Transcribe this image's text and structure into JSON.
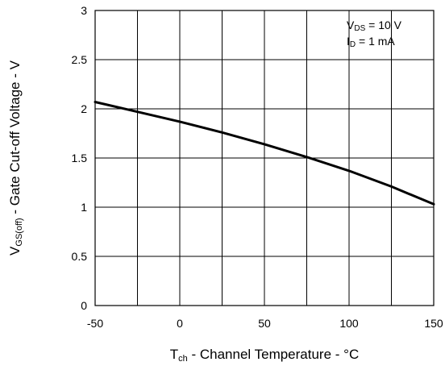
{
  "chart_data": {
    "type": "line",
    "xlim": [
      -50,
      150
    ],
    "ylim": [
      0,
      3
    ],
    "x_ticks": [
      "-50",
      "0",
      "50",
      "100",
      "150"
    ],
    "y_ticks": [
      "0",
      "0.5",
      "1",
      "1.5",
      "2",
      "2.5",
      "3"
    ],
    "x_grid_step": 25,
    "y_grid_step": 0.5,
    "grid": true,
    "xlabel": {
      "main": "T",
      "sub": "ch",
      "rest": " - Channel Temperature - °C"
    },
    "ylabel": {
      "main": "V",
      "sub": "GS(off)",
      "rest": " - Gate Cut-off Voltage - V"
    },
    "annotations": [
      {
        "main": "V",
        "sub": "DS",
        "rest": " = 10 V"
      },
      {
        "main": "I",
        "sub": "D",
        "rest": " = 1 mA"
      }
    ],
    "annotation_position": "top-right",
    "series": [
      {
        "color": "#000000",
        "x": [
          -50,
          -25,
          0,
          25,
          50,
          75,
          100,
          125,
          150
        ],
        "y": [
          2.07,
          1.97,
          1.87,
          1.76,
          1.64,
          1.51,
          1.37,
          1.21,
          1.03
        ]
      }
    ]
  }
}
